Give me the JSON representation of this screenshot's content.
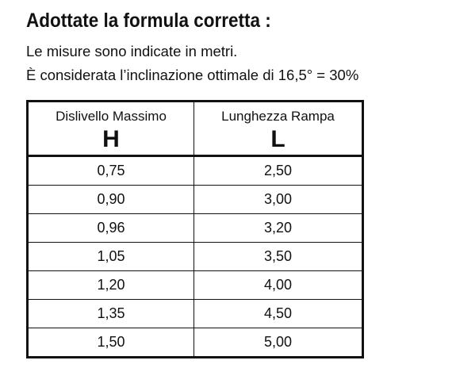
{
  "header": {
    "title": "Adottate la formula corretta :",
    "lines": [
      "Le misure sono indicate in metri.",
      "È considerata l’inclinazione ottimale di 16,5° = 30%"
    ]
  },
  "table": {
    "columns": [
      {
        "name": "Dislivello Massimo",
        "symbol": "H"
      },
      {
        "name": "Lunghezza Rampa",
        "symbol": "L"
      }
    ],
    "rows": [
      [
        "0,75",
        "2,50"
      ],
      [
        "0,90",
        "3,00"
      ],
      [
        "0,96",
        "3,20"
      ],
      [
        "1,05",
        "3,50"
      ],
      [
        "1,20",
        "4,00"
      ],
      [
        "1,35",
        "4,50"
      ],
      [
        "1,50",
        "5,00"
      ]
    ]
  }
}
